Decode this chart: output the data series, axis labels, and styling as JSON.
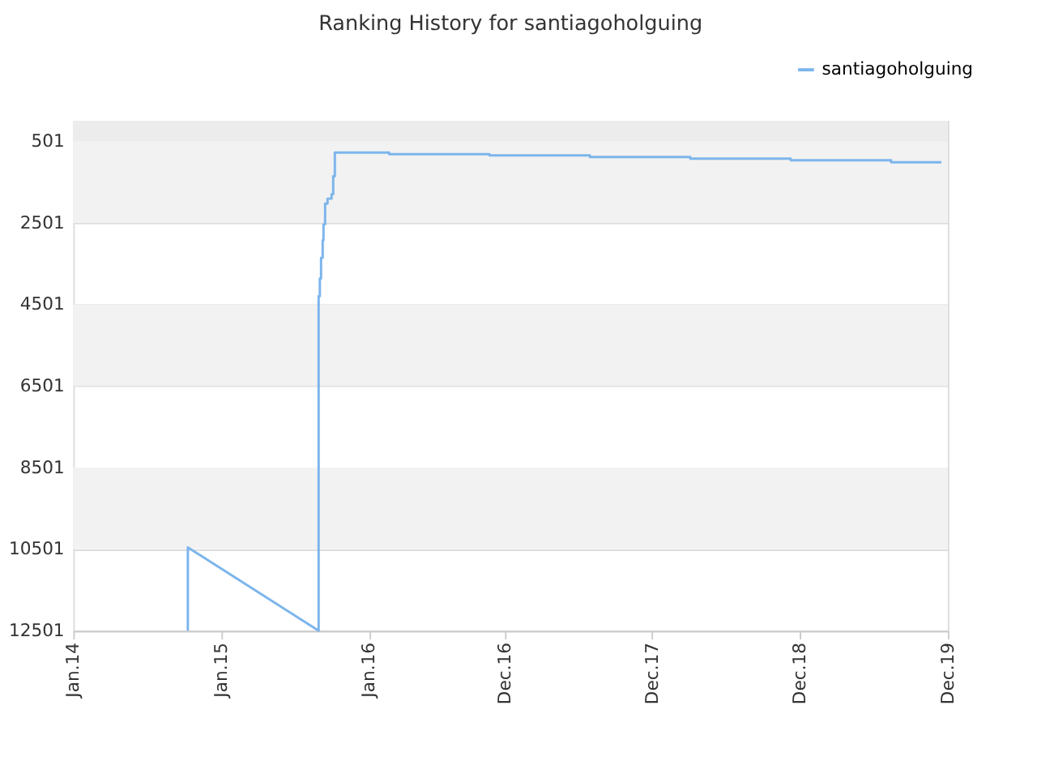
{
  "chart_data": {
    "type": "line",
    "title": "Ranking History for santiagoholguing",
    "x": [
      "2014-10-11",
      "2014-10-11",
      "2015-08-30",
      "2015-08-30",
      "2015-09-02",
      "2015-09-02",
      "2015-09-05",
      "2015-09-05",
      "2015-09-09",
      "2015-09-09",
      "2015-09-11",
      "2015-09-11",
      "2015-09-15",
      "2015-09-15",
      "2015-09-21",
      "2015-09-21",
      "2015-10-01",
      "2015-10-01",
      "2015-10-05",
      "2015-10-05",
      "2015-10-09",
      "2015-10-09",
      "2016-02-20",
      "2016-02-20",
      "2016-10-25",
      "2016-10-25",
      "2017-06-30",
      "2017-06-30",
      "2018-03-05",
      "2018-03-05",
      "2018-11-08",
      "2018-11-08",
      "2019-07-14",
      "2019-07-14",
      "2019-11-15"
    ],
    "series": [
      {
        "name": "santiagoholguing",
        "color": "#7cb5ec",
        "values": [
          12501,
          10460,
          12501,
          4300,
          4300,
          3870,
          3870,
          3360,
          3360,
          2930,
          2930,
          2540,
          2540,
          2030,
          2030,
          1910,
          1910,
          1800,
          1800,
          1360,
          1360,
          780,
          780,
          820,
          820,
          850,
          850,
          890,
          890,
          930,
          930,
          970,
          970,
          1020,
          1020
        ]
      }
    ],
    "xlim": [
      "2014-01-01",
      "2019-12-01"
    ],
    "xticks": [
      {
        "value": "2014-01-01",
        "label": "Jan.14"
      },
      {
        "value": "2015-01-01",
        "label": "Jan.15"
      },
      {
        "value": "2016-01-01",
        "label": "Jan.16"
      },
      {
        "value": "2016-12-01",
        "label": "Dec.16"
      },
      {
        "value": "2017-12-01",
        "label": "Dec.17"
      },
      {
        "value": "2018-12-01",
        "label": "Dec.18"
      },
      {
        "value": "2019-12-01",
        "label": "Dec.19"
      }
    ],
    "ylim": [
      12501,
      1
    ],
    "yticks": [
      501,
      2501,
      4501,
      6501,
      8501,
      10501,
      12501
    ],
    "bands": [
      {
        "axis": "y",
        "from": 1,
        "to": 501,
        "color": "#ececec"
      },
      {
        "axis": "y",
        "from": 501,
        "to": 2501,
        "color": "#f2f2f2"
      },
      {
        "axis": "y",
        "from": 4501,
        "to": 6501,
        "color": "#f2f2f2"
      },
      {
        "axis": "y",
        "from": 8501,
        "to": 10501,
        "color": "#f2f2f2"
      }
    ],
    "grid": "y",
    "legend": "top right"
  }
}
